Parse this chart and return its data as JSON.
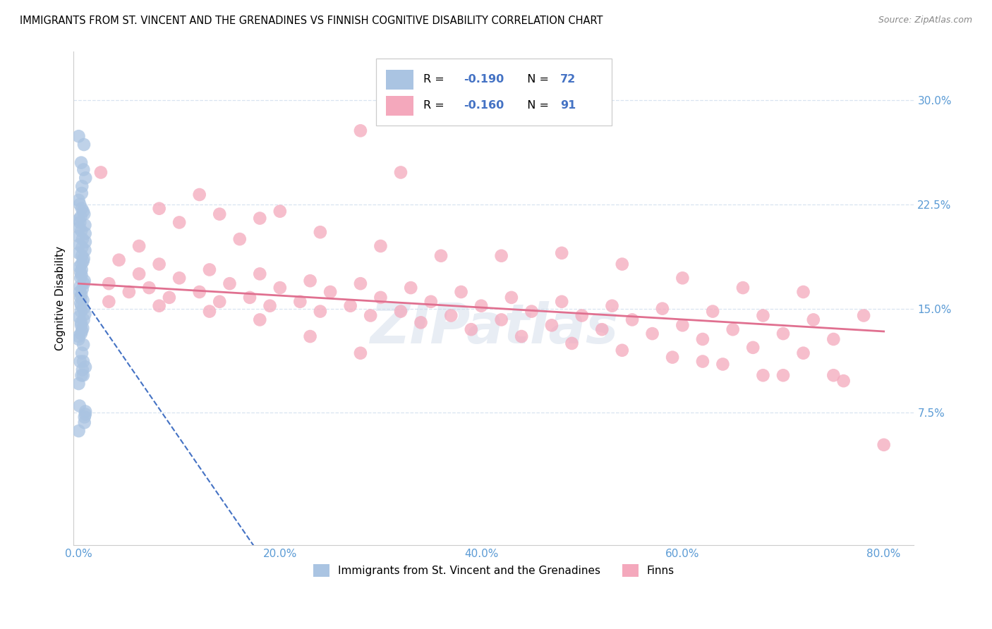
{
  "title": "IMMIGRANTS FROM ST. VINCENT AND THE GRENADINES VS FINNISH COGNITIVE DISABILITY CORRELATION CHART",
  "source": "Source: ZipAtlas.com",
  "xlabel_ticks": [
    "0.0%",
    "20.0%",
    "40.0%",
    "60.0%",
    "80.0%"
  ],
  "xlabel_vals": [
    0.0,
    0.2,
    0.4,
    0.6,
    0.8
  ],
  "ylabel_ticks": [
    "7.5%",
    "15.0%",
    "22.5%",
    "30.0%"
  ],
  "ylabel_vals": [
    0.075,
    0.15,
    0.225,
    0.3
  ],
  "ylabel_label": "Cognitive Disability",
  "legend_label1": "Immigrants from St. Vincent and the Grenadines",
  "legend_label2": "Finns",
  "R1": -0.19,
  "N1": 72,
  "R2": -0.16,
  "N2": 91,
  "blue_color": "#aac4e2",
  "pink_color": "#f4a8bc",
  "blue_line_color": "#4472c4",
  "pink_line_color": "#e07090",
  "axis_color": "#5b9bd5",
  "grid_color": "#d8e4f0",
  "watermark": "ZIPatlas",
  "blue_x": [
    0.001,
    0.001,
    0.001,
    0.001,
    0.001,
    0.001,
    0.001,
    0.001,
    0.001,
    0.001,
    0.001,
    0.001,
    0.001,
    0.001,
    0.001,
    0.001,
    0.001,
    0.001,
    0.001,
    0.001,
    0.001,
    0.001,
    0.001,
    0.001,
    0.001,
    0.001,
    0.001,
    0.001,
    0.001,
    0.001,
    0.001,
    0.001,
    0.001,
    0.001,
    0.001,
    0.001,
    0.001,
    0.001,
    0.001,
    0.001,
    0.001,
    0.001,
    0.001,
    0.001,
    0.001,
    0.001,
    0.001,
    0.001,
    0.001,
    0.001,
    0.001,
    0.001,
    0.001,
    0.001,
    0.001,
    0.001,
    0.001,
    0.001,
    0.001,
    0.001,
    0.001,
    0.001,
    0.001,
    0.001,
    0.001,
    0.001,
    0.001,
    0.001,
    0.001,
    0.001,
    0.001,
    0.001
  ],
  "blue_y": [
    0.274,
    0.268,
    0.255,
    0.25,
    0.244,
    0.238,
    0.233,
    0.228,
    0.225,
    0.222,
    0.22,
    0.218,
    0.216,
    0.214,
    0.212,
    0.21,
    0.208,
    0.206,
    0.204,
    0.202,
    0.2,
    0.198,
    0.196,
    0.194,
    0.192,
    0.19,
    0.188,
    0.186,
    0.184,
    0.182,
    0.18,
    0.178,
    0.176,
    0.174,
    0.172,
    0.17,
    0.168,
    0.166,
    0.164,
    0.162,
    0.16,
    0.158,
    0.156,
    0.154,
    0.152,
    0.15,
    0.148,
    0.146,
    0.144,
    0.142,
    0.14,
    0.138,
    0.136,
    0.134,
    0.132,
    0.13,
    0.128,
    0.124,
    0.118,
    0.112,
    0.108,
    0.102,
    0.096,
    0.112,
    0.106,
    0.08,
    0.076,
    0.074,
    0.072,
    0.102,
    0.068,
    0.062
  ],
  "pink_x": [
    0.022,
    0.12,
    0.28,
    0.32,
    0.2,
    0.18,
    0.1,
    0.14,
    0.08,
    0.06,
    0.16,
    0.24,
    0.3,
    0.36,
    0.42,
    0.48,
    0.54,
    0.6,
    0.66,
    0.72,
    0.78,
    0.04,
    0.08,
    0.13,
    0.18,
    0.23,
    0.28,
    0.33,
    0.38,
    0.43,
    0.48,
    0.53,
    0.58,
    0.63,
    0.68,
    0.73,
    0.06,
    0.1,
    0.15,
    0.2,
    0.25,
    0.3,
    0.35,
    0.4,
    0.45,
    0.5,
    0.55,
    0.6,
    0.65,
    0.7,
    0.75,
    0.03,
    0.07,
    0.12,
    0.17,
    0.22,
    0.27,
    0.32,
    0.37,
    0.42,
    0.47,
    0.52,
    0.57,
    0.62,
    0.67,
    0.72,
    0.05,
    0.09,
    0.14,
    0.19,
    0.24,
    0.29,
    0.34,
    0.39,
    0.44,
    0.49,
    0.54,
    0.59,
    0.64,
    0.7,
    0.76,
    0.03,
    0.08,
    0.13,
    0.18,
    0.23,
    0.28,
    0.8,
    0.75,
    0.68,
    0.62
  ],
  "pink_y": [
    0.248,
    0.232,
    0.278,
    0.248,
    0.22,
    0.215,
    0.212,
    0.218,
    0.222,
    0.195,
    0.2,
    0.205,
    0.195,
    0.188,
    0.188,
    0.19,
    0.182,
    0.172,
    0.165,
    0.162,
    0.145,
    0.185,
    0.182,
    0.178,
    0.175,
    0.17,
    0.168,
    0.165,
    0.162,
    0.158,
    0.155,
    0.152,
    0.15,
    0.148,
    0.145,
    0.142,
    0.175,
    0.172,
    0.168,
    0.165,
    0.162,
    0.158,
    0.155,
    0.152,
    0.148,
    0.145,
    0.142,
    0.138,
    0.135,
    0.132,
    0.128,
    0.168,
    0.165,
    0.162,
    0.158,
    0.155,
    0.152,
    0.148,
    0.145,
    0.142,
    0.138,
    0.135,
    0.132,
    0.128,
    0.122,
    0.118,
    0.162,
    0.158,
    0.155,
    0.152,
    0.148,
    0.145,
    0.14,
    0.135,
    0.13,
    0.125,
    0.12,
    0.115,
    0.11,
    0.102,
    0.098,
    0.155,
    0.152,
    0.148,
    0.142,
    0.13,
    0.118,
    0.052,
    0.102,
    0.102,
    0.112
  ],
  "xlim": [
    -0.005,
    0.83
  ],
  "ylim": [
    -0.02,
    0.335
  ],
  "blue_line_x": [
    0.0,
    0.185
  ],
  "blue_line_intercept": 0.162,
  "blue_line_slope": -1.05,
  "pink_line_x": [
    0.0,
    0.8
  ],
  "pink_line_intercept": 0.168,
  "pink_line_slope": -0.043,
  "figsize": [
    14.06,
    8.92
  ],
  "dpi": 100
}
